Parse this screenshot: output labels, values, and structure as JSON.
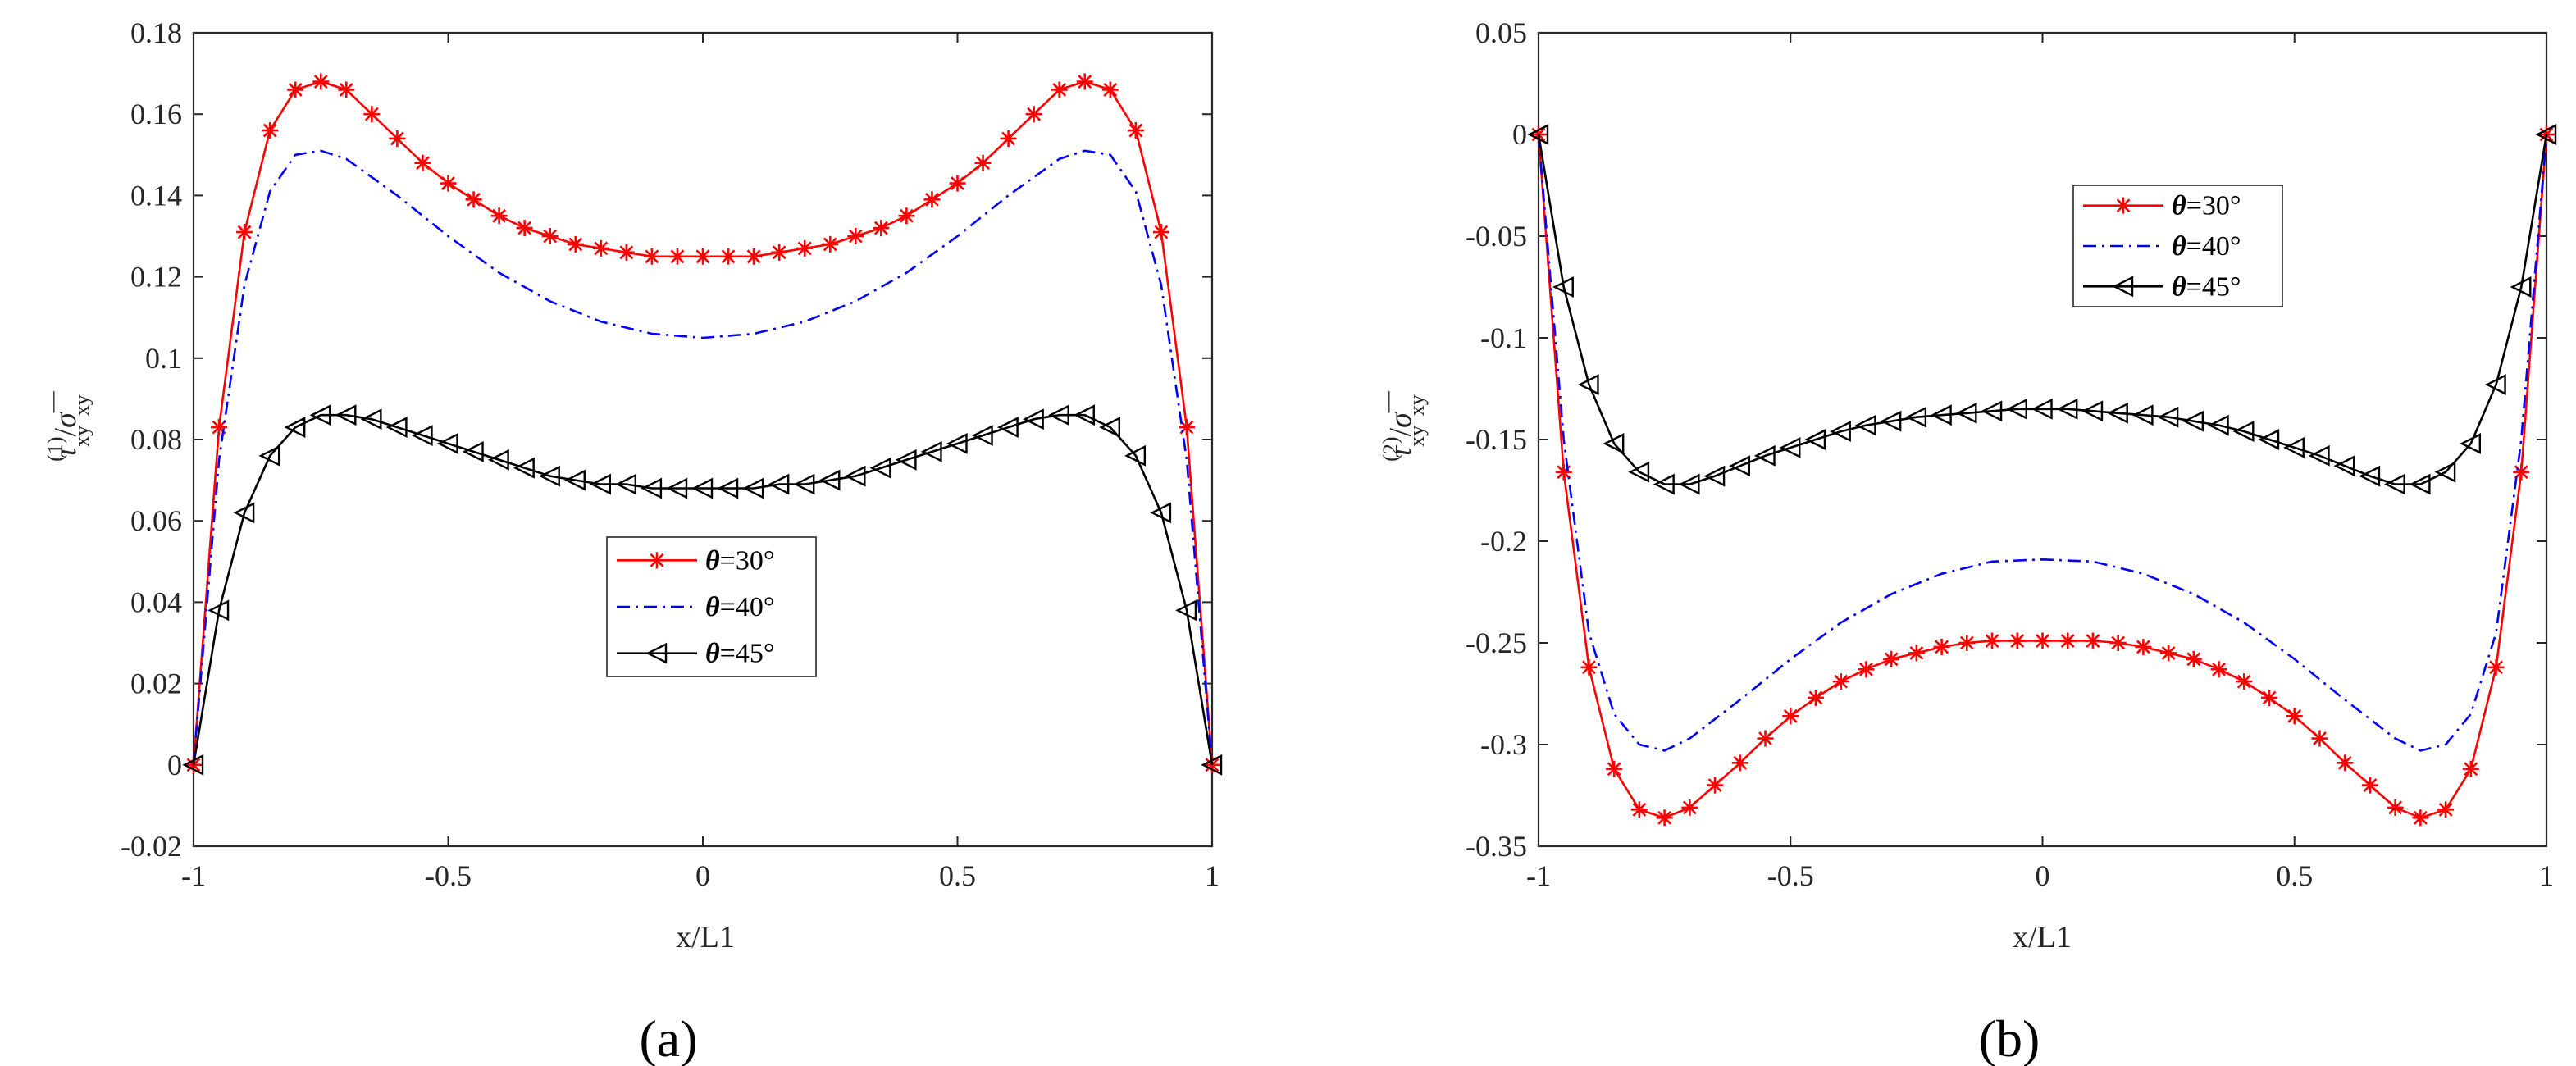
{
  "chart_data": [
    {
      "type": "line",
      "panel_label": "(a)",
      "xlabel": "x/L1",
      "ylabel": {
        "tau": "τ",
        "sup": "(1)",
        "sub": "xy",
        "slash": "/",
        "sigma": "σ",
        "bar": "—",
        "sigma_sub": "xy"
      },
      "xlim": [
        -1,
        1
      ],
      "ylim": [
        -0.02,
        0.18
      ],
      "xticks": [
        "-1",
        "-0.5",
        "0",
        "0.5",
        "1"
      ],
      "yticks": [
        "-0.02",
        "0",
        "0.02",
        "0.04",
        "0.06",
        "0.08",
        "0.1",
        "0.12",
        "0.14",
        "0.16",
        "0.18"
      ],
      "legend_position": "center-lower",
      "series": [
        {
          "name_var": "θ",
          "name_rest": "=30°",
          "color": "#ff0000",
          "dash": "solid",
          "marker": "star",
          "x": [
            -1,
            -0.95,
            -0.9,
            -0.85,
            -0.8,
            -0.75,
            -0.7,
            -0.65,
            -0.6,
            -0.55,
            -0.5,
            -0.45,
            -0.4,
            -0.35,
            -0.3,
            -0.25,
            -0.2,
            -0.15,
            -0.1,
            -0.05,
            0,
            0.05,
            0.1,
            0.15,
            0.2,
            0.25,
            0.3,
            0.35,
            0.4,
            0.45,
            0.5,
            0.55,
            0.6,
            0.65,
            0.7,
            0.75,
            0.8,
            0.85,
            0.9,
            0.95,
            1
          ],
          "y": [
            0,
            0.083,
            0.131,
            0.156,
            0.166,
            0.168,
            0.166,
            0.16,
            0.154,
            0.148,
            0.143,
            0.139,
            0.135,
            0.132,
            0.13,
            0.128,
            0.127,
            0.126,
            0.125,
            0.125,
            0.125,
            0.125,
            0.125,
            0.126,
            0.127,
            0.128,
            0.13,
            0.132,
            0.135,
            0.139,
            0.143,
            0.148,
            0.154,
            0.16,
            0.166,
            0.168,
            0.166,
            0.156,
            0.131,
            0.083,
            0
          ]
        },
        {
          "name_var": "θ",
          "name_rest": "=40°",
          "color": "#0000ff",
          "dash": "dashdot",
          "marker": "none",
          "x": [
            -1,
            -0.95,
            -0.9,
            -0.85,
            -0.8,
            -0.75,
            -0.7,
            -0.6,
            -0.5,
            -0.4,
            -0.3,
            -0.2,
            -0.1,
            0,
            0.1,
            0.2,
            0.3,
            0.4,
            0.5,
            0.6,
            0.7,
            0.75,
            0.8,
            0.85,
            0.9,
            0.95,
            1
          ],
          "y": [
            0,
            0.075,
            0.118,
            0.141,
            0.15,
            0.151,
            0.149,
            0.14,
            0.13,
            0.121,
            0.114,
            0.109,
            0.106,
            0.105,
            0.106,
            0.109,
            0.114,
            0.121,
            0.13,
            0.14,
            0.149,
            0.151,
            0.15,
            0.141,
            0.118,
            0.075,
            0
          ]
        },
        {
          "name_var": "θ",
          "name_rest": "=45°",
          "color": "#000000",
          "dash": "solid",
          "marker": "triangle-left",
          "x": [
            -1,
            -0.95,
            -0.9,
            -0.85,
            -0.8,
            -0.75,
            -0.7,
            -0.65,
            -0.6,
            -0.55,
            -0.5,
            -0.45,
            -0.4,
            -0.35,
            -0.3,
            -0.25,
            -0.2,
            -0.15,
            -0.1,
            -0.05,
            0,
            0.05,
            0.1,
            0.15,
            0.2,
            0.25,
            0.3,
            0.35,
            0.4,
            0.45,
            0.5,
            0.55,
            0.6,
            0.65,
            0.7,
            0.75,
            0.8,
            0.85,
            0.9,
            0.95,
            1
          ],
          "y": [
            0,
            0.038,
            0.062,
            0.076,
            0.083,
            0.086,
            0.086,
            0.085,
            0.083,
            0.081,
            0.079,
            0.077,
            0.075,
            0.073,
            0.071,
            0.07,
            0.069,
            0.069,
            0.068,
            0.068,
            0.068,
            0.068,
            0.068,
            0.069,
            0.069,
            0.07,
            0.071,
            0.073,
            0.075,
            0.077,
            0.079,
            0.081,
            0.083,
            0.085,
            0.086,
            0.086,
            0.083,
            0.076,
            0.062,
            0.038,
            0
          ]
        }
      ]
    },
    {
      "type": "line",
      "panel_label": "(b)",
      "xlabel": "x/L1",
      "ylabel": {
        "tau": "τ",
        "sup": "(2)",
        "sub": "xy",
        "slash": "/",
        "sigma": "σ",
        "bar": "—",
        "sigma_sub": "xy"
      },
      "xlim": [
        -1,
        1
      ],
      "ylim": [
        -0.35,
        0.05
      ],
      "xticks": [
        "-1",
        "-0.5",
        "0",
        "0.5",
        "1"
      ],
      "yticks": [
        "-0.35",
        "-0.3",
        "-0.25",
        "-0.2",
        "-0.15",
        "-0.1",
        "-0.05",
        "0",
        "0.05"
      ],
      "legend_position": "top-center",
      "series": [
        {
          "name_var": "θ",
          "name_rest": "=30°",
          "color": "#ff0000",
          "dash": "solid",
          "marker": "star",
          "x": [
            -1,
            -0.95,
            -0.9,
            -0.85,
            -0.8,
            -0.75,
            -0.7,
            -0.65,
            -0.6,
            -0.55,
            -0.5,
            -0.45,
            -0.4,
            -0.35,
            -0.3,
            -0.25,
            -0.2,
            -0.15,
            -0.1,
            -0.05,
            0,
            0.05,
            0.1,
            0.15,
            0.2,
            0.25,
            0.3,
            0.35,
            0.4,
            0.45,
            0.5,
            0.55,
            0.6,
            0.65,
            0.7,
            0.75,
            0.8,
            0.85,
            0.9,
            0.95,
            1
          ],
          "y": [
            0,
            -0.166,
            -0.262,
            -0.312,
            -0.332,
            -0.336,
            -0.331,
            -0.32,
            -0.309,
            -0.297,
            -0.286,
            -0.277,
            -0.269,
            -0.263,
            -0.258,
            -0.255,
            -0.252,
            -0.25,
            -0.249,
            -0.249,
            -0.249,
            -0.249,
            -0.249,
            -0.25,
            -0.252,
            -0.255,
            -0.258,
            -0.263,
            -0.269,
            -0.277,
            -0.286,
            -0.297,
            -0.309,
            -0.32,
            -0.331,
            -0.336,
            -0.332,
            -0.312,
            -0.262,
            -0.166,
            0
          ]
        },
        {
          "name_var": "θ",
          "name_rest": "=40°",
          "color": "#0000ff",
          "dash": "dashdot",
          "marker": "none",
          "x": [
            -1,
            -0.95,
            -0.9,
            -0.85,
            -0.8,
            -0.75,
            -0.7,
            -0.6,
            -0.5,
            -0.4,
            -0.3,
            -0.2,
            -0.1,
            0,
            0.1,
            0.2,
            0.3,
            0.4,
            0.5,
            0.6,
            0.7,
            0.75,
            0.8,
            0.85,
            0.9,
            0.95,
            1
          ],
          "y": [
            0,
            -0.15,
            -0.245,
            -0.285,
            -0.3,
            -0.303,
            -0.297,
            -0.278,
            -0.258,
            -0.24,
            -0.226,
            -0.216,
            -0.21,
            -0.209,
            -0.21,
            -0.216,
            -0.226,
            -0.24,
            -0.258,
            -0.278,
            -0.297,
            -0.303,
            -0.3,
            -0.285,
            -0.245,
            -0.15,
            0
          ]
        },
        {
          "name_var": "θ",
          "name_rest": "=45°",
          "color": "#000000",
          "dash": "solid",
          "marker": "triangle-left",
          "x": [
            -1,
            -0.95,
            -0.9,
            -0.85,
            -0.8,
            -0.75,
            -0.7,
            -0.65,
            -0.6,
            -0.55,
            -0.5,
            -0.45,
            -0.4,
            -0.35,
            -0.3,
            -0.25,
            -0.2,
            -0.15,
            -0.1,
            -0.05,
            0,
            0.05,
            0.1,
            0.15,
            0.2,
            0.25,
            0.3,
            0.35,
            0.4,
            0.45,
            0.5,
            0.55,
            0.6,
            0.65,
            0.7,
            0.75,
            0.8,
            0.85,
            0.9,
            0.95,
            1
          ],
          "y": [
            0,
            -0.075,
            -0.123,
            -0.152,
            -0.166,
            -0.172,
            -0.172,
            -0.168,
            -0.163,
            -0.158,
            -0.154,
            -0.15,
            -0.146,
            -0.143,
            -0.141,
            -0.139,
            -0.138,
            -0.137,
            -0.136,
            -0.135,
            -0.135,
            -0.135,
            -0.136,
            -0.137,
            -0.138,
            -0.139,
            -0.141,
            -0.143,
            -0.146,
            -0.15,
            -0.154,
            -0.158,
            -0.163,
            -0.168,
            -0.172,
            -0.172,
            -0.166,
            -0.152,
            -0.123,
            -0.075,
            0
          ]
        }
      ]
    }
  ]
}
